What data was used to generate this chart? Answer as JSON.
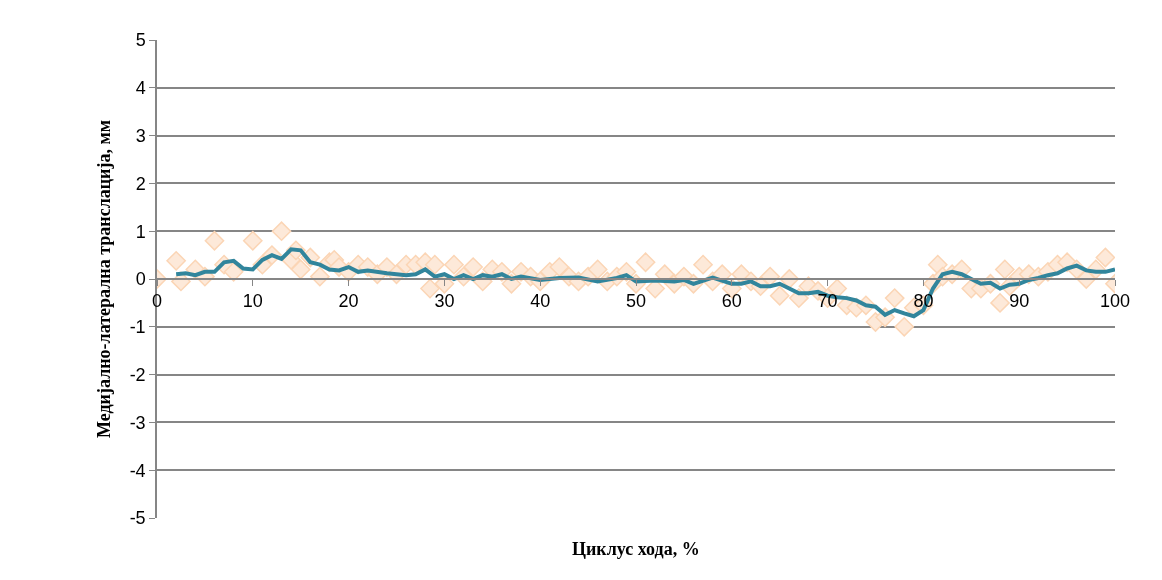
{
  "chart_data": {
    "type": "scatter",
    "xlabel": "Циклус хода, %",
    "ylabel": "Медијално-латерална транслација, мм",
    "xlim": [
      0,
      100
    ],
    "xticks": [
      0,
      10,
      20,
      30,
      40,
      50,
      60,
      70,
      80,
      90,
      100
    ],
    "ylim": [
      -5,
      5
    ],
    "yticks": [
      -5,
      -4,
      -3,
      -2,
      -1,
      0,
      1,
      2,
      3,
      4,
      5
    ],
    "grid": "y",
    "legend": false,
    "series": [
      {
        "marker": "diamond",
        "color": "#fde9d9",
        "x": [
          0,
          2,
          2.5,
          4,
          5,
          6,
          7,
          8,
          10,
          11,
          12,
          13,
          14,
          14.5,
          15,
          16,
          17,
          18,
          18.5,
          19,
          20,
          21,
          22,
          23,
          24,
          25,
          26,
          27,
          28,
          28.5,
          29,
          30,
          31,
          32,
          33,
          34,
          35,
          36,
          37,
          38,
          39,
          40,
          41,
          42,
          43,
          44,
          45,
          46,
          47,
          48,
          49,
          50,
          51,
          52,
          53,
          54,
          55,
          56,
          57,
          58,
          59,
          60,
          61,
          62,
          63,
          64,
          65,
          66,
          67,
          68,
          69,
          70,
          71,
          72,
          73,
          74,
          75,
          76,
          77,
          78,
          79,
          80,
          81,
          81.5,
          82,
          83,
          84,
          85,
          86,
          87,
          88,
          88.5,
          89,
          90,
          91,
          92,
          93,
          94,
          95,
          96,
          97,
          98,
          99,
          100
        ],
        "values": [
          0,
          0.38,
          -0.05,
          0.2,
          0.05,
          0.8,
          0.3,
          0.15,
          0.8,
          0.3,
          0.5,
          1.0,
          0.4,
          0.6,
          0.2,
          0.45,
          0.05,
          0.35,
          0.4,
          0.25,
          0.15,
          0.3,
          0.25,
          0.1,
          0.25,
          0.1,
          0.3,
          0.3,
          0.35,
          -0.2,
          0.3,
          -0.1,
          0.3,
          0.05,
          0.25,
          -0.05,
          0.2,
          0.15,
          -0.1,
          0.15,
          0.05,
          -0.05,
          0.15,
          0.25,
          0.05,
          -0.05,
          0.05,
          0.2,
          -0.05,
          0.05,
          0.15,
          -0.1,
          0.35,
          -0.2,
          0.1,
          -0.1,
          0.05,
          -0.1,
          0.3,
          -0.05,
          0.1,
          -0.2,
          0.1,
          -0.05,
          -0.15,
          0.05,
          -0.35,
          0.0,
          -0.4,
          -0.15,
          -0.25,
          -0.4,
          -0.2,
          -0.55,
          -0.6,
          -0.55,
          -0.9,
          -0.8,
          -0.4,
          -1.0,
          -0.6,
          -0.55,
          -0.1,
          0.3,
          0.05,
          0.1,
          0.2,
          -0.2,
          -0.2,
          -0.1,
          -0.5,
          0.2,
          -0.15,
          0.05,
          0.1,
          0.05,
          0.15,
          0.3,
          0.35,
          0.2,
          0.0,
          0.2,
          0.45,
          -0.1
        ]
      },
      {
        "type": "line",
        "marker": "none",
        "line_style": "solid",
        "color": "#31859c",
        "x": [
          2,
          3,
          4,
          5,
          6,
          7,
          8,
          9,
          10,
          11,
          12,
          13,
          14,
          15,
          16,
          17,
          18,
          19,
          20,
          21,
          22,
          24,
          26,
          27,
          28,
          29,
          30,
          31,
          32,
          33,
          34,
          35,
          36,
          37,
          38,
          40,
          42,
          44,
          46,
          48,
          49,
          50,
          52,
          54,
          55,
          56,
          58,
          60,
          61,
          62,
          63,
          64,
          65,
          66,
          67,
          68,
          69,
          70,
          71,
          72,
          73,
          74,
          75,
          76,
          77,
          78,
          79,
          80,
          81,
          82,
          83,
          84,
          85,
          86,
          87,
          88,
          89,
          90,
          91,
          92,
          93,
          94,
          95,
          96,
          97,
          98,
          99,
          100
        ],
        "values": [
          0.1,
          0.12,
          0.08,
          0.15,
          0.15,
          0.35,
          0.38,
          0.22,
          0.2,
          0.4,
          0.5,
          0.42,
          0.62,
          0.6,
          0.35,
          0.3,
          0.2,
          0.18,
          0.25,
          0.15,
          0.18,
          0.12,
          0.08,
          0.1,
          0.2,
          0.05,
          0.1,
          0,
          0.08,
          0,
          0.08,
          0.05,
          0.1,
          0,
          0.05,
          -0.02,
          0.02,
          0.03,
          -0.05,
          0.02,
          0.08,
          -0.05,
          -0.03,
          -0.05,
          -0.02,
          -0.1,
          0.03,
          -0.1,
          -0.1,
          -0.05,
          -0.15,
          -0.15,
          -0.1,
          -0.2,
          -0.3,
          -0.3,
          -0.27,
          -0.35,
          -0.38,
          -0.4,
          -0.45,
          -0.55,
          -0.58,
          -0.75,
          -0.65,
          -0.72,
          -0.78,
          -0.65,
          -0.2,
          0.1,
          0.15,
          0.1,
          0.0,
          -0.1,
          -0.08,
          -0.2,
          -0.12,
          -0.1,
          -0.02,
          0.02,
          0.08,
          0.12,
          0.22,
          0.28,
          0.18,
          0.15,
          0.15,
          0.2
        ]
      }
    ]
  }
}
